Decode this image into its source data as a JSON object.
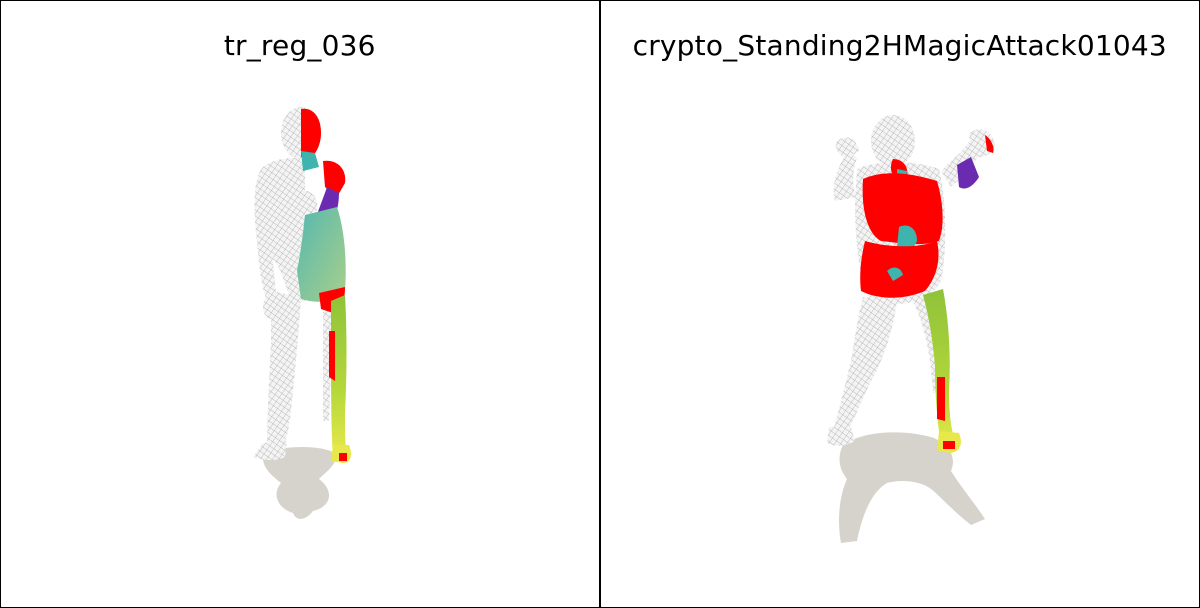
{
  "panels": [
    {
      "title": "tr_reg_036",
      "figure": "human-mesh-standing-arm-raised",
      "colors": {
        "mesh": "#f2f2f2",
        "wire": "#9a9a9a",
        "shadow": "#d6d3cc",
        "red": "#ff0000",
        "teal": "#3fb3ad",
        "purple": "#6a2bb0",
        "green": "#9fcc33",
        "yellow": "#e8e84a"
      }
    },
    {
      "title": "crypto_Standing2HMagicAttack01043",
      "figure": "human-mesh-crouching-arms-spread",
      "colors": {
        "mesh": "#f2f2f2",
        "wire": "#9a9a9a",
        "shadow": "#d6d3cc",
        "red": "#ff0000",
        "teal": "#3fb3ad",
        "purple": "#6a2bb0",
        "green": "#9fcc33",
        "yellow": "#e8e84a"
      }
    }
  ]
}
